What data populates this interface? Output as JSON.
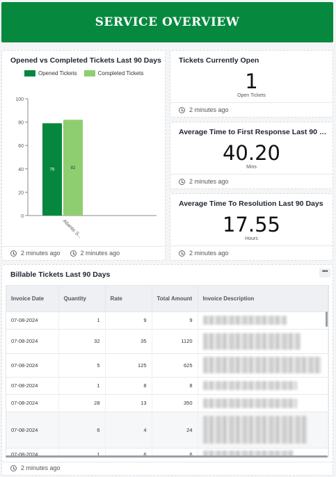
{
  "banner": {
    "title": "SERVICE OVERVIEW"
  },
  "chart_card": {
    "title": "Opened vs Completed Tickets Last 90 Days",
    "foot_left": "2 minutes ago",
    "foot_right": "2 minutes ago"
  },
  "chart_data": {
    "type": "bar",
    "categories": [
      "Atlantic S..."
    ],
    "series": [
      {
        "name": "Opened Tickets",
        "values": [
          79
        ],
        "color": "#06873f"
      },
      {
        "name": "Completed Tickets",
        "values": [
          82
        ],
        "color": "#8fce70"
      }
    ],
    "ylim": [
      0,
      100
    ],
    "yticks": [
      0,
      20,
      40,
      60,
      80,
      100
    ],
    "legend": "top-left",
    "grid": false
  },
  "kpis": [
    {
      "title": "Tickets Currently Open",
      "value": "1",
      "unit": "Open Tickets",
      "updated": "2 minutes ago"
    },
    {
      "title": "Average Time to First Response Last 90 D...",
      "value": "40.20",
      "unit": "Mins",
      "updated": "2 minutes ago"
    },
    {
      "title": "Average Time To Resolution Last 90 Days",
      "value": "17.55",
      "unit": "Hours",
      "updated": "2 minutes ago"
    }
  ],
  "billable": {
    "title": "Billable Tickets Last 90 Days",
    "menu_icon": "more-horizontal-icon",
    "updated": "2 minutes ago",
    "columns": [
      "Invoice Date",
      "Quantity",
      "Rate",
      "Total Amount",
      "Invoice Description"
    ],
    "rows": [
      {
        "date": "07-08-2024",
        "qty": "1",
        "rate": "9",
        "total": "9",
        "desc": ""
      },
      {
        "date": "07-08-2024",
        "qty": "32",
        "rate": "35",
        "total": "1120",
        "desc": ""
      },
      {
        "date": "07-08-2024",
        "qty": "5",
        "rate": "125",
        "total": "625",
        "desc": ""
      },
      {
        "date": "07-08-2024",
        "qty": "1",
        "rate": "8",
        "total": "8",
        "desc": ""
      },
      {
        "date": "07-08-2024",
        "qty": "28",
        "rate": "13",
        "total": "350",
        "desc": ""
      },
      {
        "date": "07-08-2024",
        "qty": "6",
        "rate": "4",
        "total": "24",
        "desc": ""
      },
      {
        "date": "07-08-2024",
        "qty": "1",
        "rate": "6",
        "total": "6",
        "desc": ""
      }
    ]
  }
}
